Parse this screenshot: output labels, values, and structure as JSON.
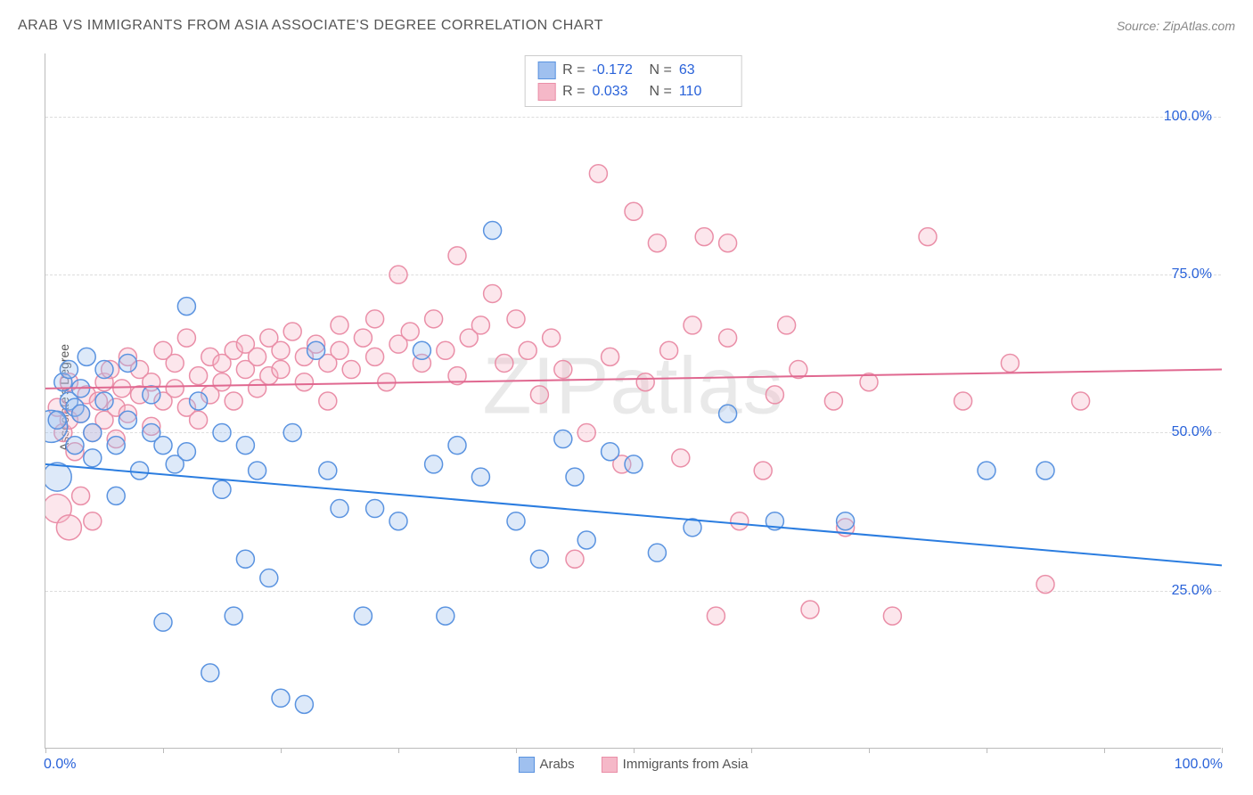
{
  "title": "ARAB VS IMMIGRANTS FROM ASIA ASSOCIATE'S DEGREE CORRELATION CHART",
  "source_label": "Source:",
  "source_name": "ZipAtlas.com",
  "y_axis_label": "Associate's Degree",
  "watermark": "ZIPatlas",
  "chart": {
    "type": "scatter",
    "xlim": [
      0,
      100
    ],
    "ylim": [
      0,
      110
    ],
    "y_ticks": [
      25,
      50,
      75,
      100
    ],
    "y_tick_labels": [
      "25.0%",
      "50.0%",
      "75.0%",
      "100.0%"
    ],
    "x_tick_labels": {
      "left": "0.0%",
      "right": "100.0%"
    },
    "x_tick_positions": [
      0,
      10,
      20,
      30,
      40,
      50,
      60,
      70,
      80,
      90,
      100
    ],
    "grid_color": "#dddddd",
    "axis_color": "#bbbbbb",
    "background_color": "#ffffff",
    "tick_label_color": "#2962d9",
    "marker_radius": 10,
    "marker_stroke_width": 1.5,
    "marker_fill_opacity": 0.35,
    "trend_line_width": 2
  },
  "series": [
    {
      "id": "arabs",
      "label": "Arabs",
      "fill": "#9fc0ef",
      "stroke": "#5a93e0",
      "line_color": "#2b7de0",
      "R": "-0.172",
      "N": "63",
      "trend": {
        "y_at_x0": 45,
        "y_at_x100": 29
      },
      "points": [
        [
          1,
          52
        ],
        [
          1.5,
          58
        ],
        [
          2,
          55
        ],
        [
          2,
          60
        ],
        [
          2.5,
          48
        ],
        [
          2.5,
          54
        ],
        [
          3,
          53
        ],
        [
          3,
          57
        ],
        [
          3.5,
          62
        ],
        [
          4,
          50
        ],
        [
          4,
          46
        ],
        [
          5,
          55
        ],
        [
          5,
          60
        ],
        [
          6,
          48
        ],
        [
          6,
          40
        ],
        [
          7,
          52
        ],
        [
          7,
          61
        ],
        [
          8,
          44
        ],
        [
          9,
          50
        ],
        [
          9,
          56
        ],
        [
          10,
          48
        ],
        [
          10,
          20
        ],
        [
          11,
          45
        ],
        [
          12,
          47
        ],
        [
          12,
          70
        ],
        [
          13,
          55
        ],
        [
          14,
          12
        ],
        [
          15,
          41
        ],
        [
          15,
          50
        ],
        [
          16,
          21
        ],
        [
          17,
          48
        ],
        [
          17,
          30
        ],
        [
          18,
          44
        ],
        [
          19,
          27
        ],
        [
          20,
          8
        ],
        [
          21,
          50
        ],
        [
          22,
          7
        ],
        [
          23,
          63
        ],
        [
          24,
          44
        ],
        [
          25,
          38
        ],
        [
          27,
          21
        ],
        [
          28,
          38
        ],
        [
          30,
          36
        ],
        [
          32,
          63
        ],
        [
          33,
          45
        ],
        [
          34,
          21
        ],
        [
          35,
          48
        ],
        [
          37,
          43
        ],
        [
          38,
          82
        ],
        [
          40,
          36
        ],
        [
          42,
          30
        ],
        [
          44,
          49
        ],
        [
          45,
          43
        ],
        [
          46,
          33
        ],
        [
          48,
          47
        ],
        [
          50,
          45
        ],
        [
          52,
          31
        ],
        [
          55,
          35
        ],
        [
          58,
          53
        ],
        [
          62,
          36
        ],
        [
          68,
          36
        ],
        [
          80,
          44
        ],
        [
          85,
          44
        ]
      ],
      "big_points": [
        [
          0.5,
          51,
          18
        ],
        [
          1,
          43,
          16
        ]
      ]
    },
    {
      "id": "immigrants_asia",
      "label": "Immigrants from Asia",
      "fill": "#f5b8c8",
      "stroke": "#ea8fa8",
      "line_color": "#e06890",
      "R": "0.033",
      "N": "110",
      "trend": {
        "y_at_x0": 57,
        "y_at_x100": 60
      },
      "points": [
        [
          1,
          54
        ],
        [
          1.5,
          50
        ],
        [
          2,
          52
        ],
        [
          2,
          58
        ],
        [
          2.5,
          47
        ],
        [
          3,
          53
        ],
        [
          3,
          40
        ],
        [
          3.5,
          56
        ],
        [
          4,
          50
        ],
        [
          4,
          36
        ],
        [
          4.5,
          55
        ],
        [
          5,
          52
        ],
        [
          5,
          58
        ],
        [
          5.5,
          60
        ],
        [
          6,
          54
        ],
        [
          6,
          49
        ],
        [
          6.5,
          57
        ],
        [
          7,
          53
        ],
        [
          7,
          62
        ],
        [
          8,
          56
        ],
        [
          8,
          60
        ],
        [
          9,
          58
        ],
        [
          9,
          51
        ],
        [
          10,
          55
        ],
        [
          10,
          63
        ],
        [
          11,
          57
        ],
        [
          11,
          61
        ],
        [
          12,
          54
        ],
        [
          12,
          65
        ],
        [
          13,
          59
        ],
        [
          13,
          52
        ],
        [
          14,
          62
        ],
        [
          14,
          56
        ],
        [
          15,
          61
        ],
        [
          15,
          58
        ],
        [
          16,
          63
        ],
        [
          16,
          55
        ],
        [
          17,
          60
        ],
        [
          17,
          64
        ],
        [
          18,
          62
        ],
        [
          18,
          57
        ],
        [
          19,
          65
        ],
        [
          19,
          59
        ],
        [
          20,
          63
        ],
        [
          20,
          60
        ],
        [
          21,
          66
        ],
        [
          22,
          62
        ],
        [
          22,
          58
        ],
        [
          23,
          64
        ],
        [
          24,
          61
        ],
        [
          24,
          55
        ],
        [
          25,
          63
        ],
        [
          25,
          67
        ],
        [
          26,
          60
        ],
        [
          27,
          65
        ],
        [
          28,
          62
        ],
        [
          28,
          68
        ],
        [
          29,
          58
        ],
        [
          30,
          64
        ],
        [
          30,
          75
        ],
        [
          31,
          66
        ],
        [
          32,
          61
        ],
        [
          33,
          68
        ],
        [
          34,
          63
        ],
        [
          35,
          78
        ],
        [
          35,
          59
        ],
        [
          36,
          65
        ],
        [
          37,
          67
        ],
        [
          38,
          72
        ],
        [
          39,
          61
        ],
        [
          40,
          68
        ],
        [
          41,
          63
        ],
        [
          42,
          56
        ],
        [
          43,
          65
        ],
        [
          44,
          60
        ],
        [
          45,
          30
        ],
        [
          46,
          50
        ],
        [
          47,
          91
        ],
        [
          48,
          62
        ],
        [
          49,
          45
        ],
        [
          50,
          85
        ],
        [
          51,
          58
        ],
        [
          52,
          80
        ],
        [
          53,
          63
        ],
        [
          54,
          46
        ],
        [
          55,
          67
        ],
        [
          56,
          81
        ],
        [
          57,
          21
        ],
        [
          58,
          65
        ],
        [
          58,
          80
        ],
        [
          59,
          36
        ],
        [
          61,
          44
        ],
        [
          62,
          56
        ],
        [
          63,
          67
        ],
        [
          64,
          60
        ],
        [
          65,
          22
        ],
        [
          67,
          55
        ],
        [
          68,
          35
        ],
        [
          70,
          58
        ],
        [
          72,
          21
        ],
        [
          75,
          81
        ],
        [
          78,
          55
        ],
        [
          82,
          61
        ],
        [
          85,
          26
        ],
        [
          88,
          55
        ]
      ],
      "big_points": [
        [
          1,
          38,
          16
        ],
        [
          2,
          35,
          14
        ]
      ]
    }
  ],
  "legend": {
    "items": [
      {
        "ref": "arabs"
      },
      {
        "ref": "immigrants_asia"
      }
    ]
  }
}
